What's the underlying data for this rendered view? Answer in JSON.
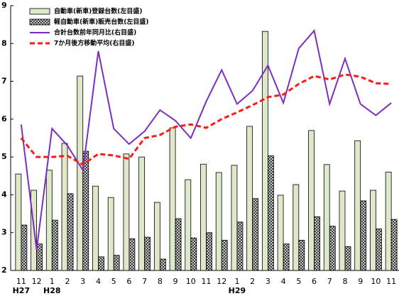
{
  "chart_data": {
    "type": "bar",
    "categories": [
      "11",
      "12",
      "1",
      "2",
      "3",
      "4",
      "5",
      "6",
      "7",
      "8",
      "9",
      "10",
      "11",
      "12",
      "1",
      "2",
      "3",
      "4",
      "5",
      "6",
      "7",
      "8",
      "9",
      "10",
      "11"
    ],
    "category_years": [
      "H27",
      null,
      "H28",
      null,
      null,
      null,
      null,
      null,
      null,
      null,
      null,
      null,
      null,
      null,
      "H29",
      null,
      null,
      null,
      null,
      null,
      null,
      null,
      null,
      null,
      null
    ],
    "ylim": [
      2,
      9
    ],
    "yticks": [
      2,
      3,
      4,
      5,
      6,
      7,
      8,
      9
    ],
    "series": [
      {
        "name": "自動車(新車)登録台数(左目盛)",
        "kind": "bar",
        "color": "#dfe8c8",
        "values": [
          4.55,
          4.12,
          4.65,
          5.36,
          7.14,
          4.23,
          3.93,
          5.08,
          5.0,
          3.8,
          5.77,
          4.4,
          4.81,
          4.59,
          4.78,
          5.81,
          8.32,
          3.99,
          4.27,
          5.7,
          4.8,
          4.1,
          5.43,
          4.12,
          4.6
        ]
      },
      {
        "name": "軽自動車(新車)販売台数(左目盛)",
        "kind": "bar",
        "color": "#222222",
        "values": [
          3.2,
          2.7,
          3.33,
          4.03,
          5.15,
          2.36,
          2.4,
          2.84,
          2.88,
          2.3,
          3.37,
          2.86,
          3.0,
          2.8,
          3.28,
          3.9,
          5.03,
          2.7,
          2.8,
          3.42,
          3.17,
          2.63,
          3.84,
          3.1,
          3.35
        ]
      },
      {
        "name": "合計台数前年同月比(右目盛)",
        "kind": "line",
        "color": "#7b2fbf",
        "style": "solid",
        "values": [
          5.86,
          2.55,
          5.75,
          5.3,
          4.65,
          7.8,
          5.75,
          5.34,
          5.68,
          6.24,
          5.96,
          5.5,
          6.47,
          7.3,
          6.4,
          6.75,
          7.42,
          6.43,
          7.87,
          8.34,
          6.4,
          7.6,
          6.4,
          6.1,
          6.43
        ]
      },
      {
        "name": "7か月後方移動平均(右目盛)",
        "kind": "line",
        "color": "#ff1a1a",
        "style": "dashed",
        "values": [
          5.5,
          5.0,
          5.0,
          5.03,
          4.8,
          5.08,
          5.04,
          4.95,
          5.5,
          5.58,
          5.8,
          5.86,
          5.77,
          6.0,
          6.18,
          6.37,
          6.58,
          6.65,
          6.93,
          7.14,
          7.05,
          7.18,
          7.12,
          6.95,
          6.93
        ]
      }
    ]
  }
}
